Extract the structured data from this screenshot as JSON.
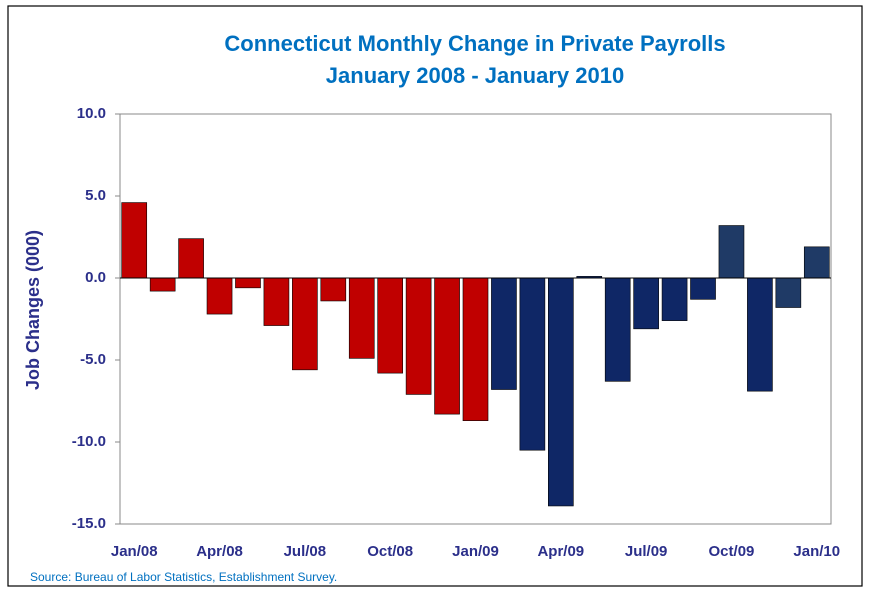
{
  "chart_data": {
    "type": "bar",
    "title": "Connecticut Monthly Change in Private Payrolls",
    "subtitle": "January 2008 - January 2010",
    "y_label": "Job Changes (000)",
    "source": "Source: Bureau of Labor Statistics, Establishment Survey.",
    "categories": [
      "Jan/08",
      null,
      null,
      "Apr/08",
      null,
      null,
      "Jul/08",
      null,
      null,
      "Oct/08",
      null,
      null,
      "Jan/09",
      null,
      null,
      "Apr/09",
      null,
      null,
      "Jul/09",
      null,
      null,
      "Oct/09",
      null,
      null,
      "Jan/10"
    ],
    "values": [
      4.6,
      -0.8,
      2.4,
      -2.2,
      -0.6,
      -2.9,
      -5.6,
      -1.4,
      -4.9,
      -5.8,
      -7.1,
      -8.3,
      -8.7,
      -6.8,
      -10.5,
      -13.9,
      0.1,
      -6.3,
      -3.1,
      -2.6,
      -1.3,
      3.2,
      -6.9,
      -1.8,
      1.9
    ],
    "colors": [
      "#c00000",
      "#c00000",
      "#c00000",
      "#c00000",
      "#c00000",
      "#c00000",
      "#c00000",
      "#c00000",
      "#c00000",
      "#c00000",
      "#c00000",
      "#c00000",
      "#c00000",
      "#0f2766",
      "#0f2766",
      "#0f2766",
      "#0f2766",
      "#0f2766",
      "#0f2766",
      "#0f2766",
      "#0f2766",
      "#1f3a66",
      "#0f2766",
      "#1f3a66",
      "#1f3a66"
    ],
    "ylim": [
      -15,
      10
    ],
    "yticks": [
      {
        "value": -15,
        "label": "-15.0"
      },
      {
        "value": -10,
        "label": "-10.0"
      },
      {
        "value": -5,
        "label": "-5.0"
      },
      {
        "value": 0,
        "label": "0.0"
      },
      {
        "value": 5,
        "label": "5.0"
      },
      {
        "value": 10,
        "label": "10.0"
      }
    ],
    "grid": false
  }
}
